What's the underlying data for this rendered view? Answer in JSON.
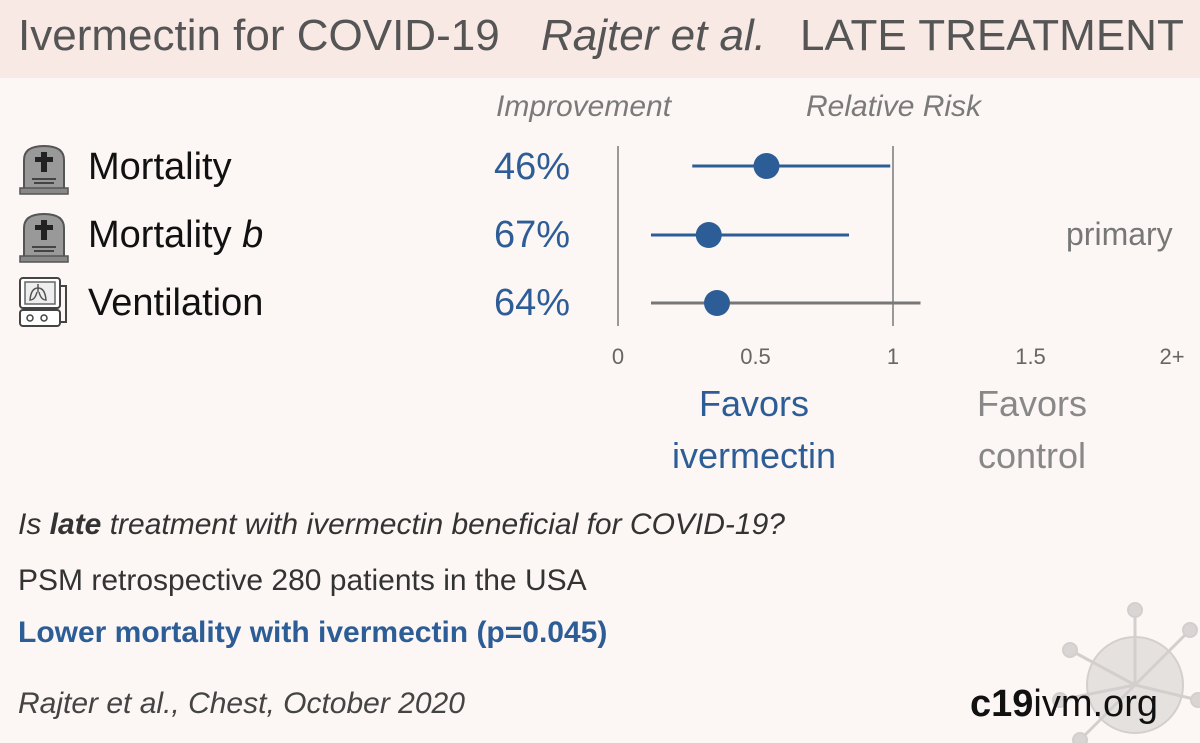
{
  "header": {
    "title_main": "Ivermectin for COVID-19",
    "title_authors": "Rajter et al.",
    "title_stage": "LATE TREATMENT"
  },
  "columns": {
    "improvement": "Improvement",
    "relative_risk": "Relative Risk"
  },
  "rows": [
    {
      "label": "Mortality",
      "label_suffix": "",
      "improvement": "46%",
      "icon": "tombstone-icon"
    },
    {
      "label": "Mortality ",
      "label_suffix": "b",
      "improvement": "67%",
      "icon": "tombstone-icon",
      "note": "primary"
    },
    {
      "label": "Ventilation",
      "label_suffix": "",
      "improvement": "64%",
      "icon": "ventilator-icon"
    }
  ],
  "chart_data": {
    "type": "forest",
    "x_axis": {
      "range": [
        0,
        2
      ],
      "reference_line": 1,
      "tick_values": [
        0,
        0.5,
        1,
        1.5,
        2
      ],
      "tick_labels": [
        "0",
        "0.5",
        "1",
        "1.5",
        "2+"
      ]
    },
    "series": [
      {
        "outcome": "Mortality",
        "rr": 0.54,
        "ci_low": 0.27,
        "ci_high": 0.99,
        "significant": true
      },
      {
        "outcome": "Mortality b",
        "rr": 0.33,
        "ci_low": 0.12,
        "ci_high": 0.84,
        "significant": true
      },
      {
        "outcome": "Ventilation",
        "rr": 0.36,
        "ci_low": 0.12,
        "ci_high": 1.1,
        "significant": false
      }
    ],
    "colors": {
      "significant": "#2d5d96",
      "not_significant": "#777777",
      "point": "#2d5d96",
      "axis": "#999999"
    }
  },
  "favors": {
    "ivermectin_line1": "Favors",
    "ivermectin_line2": "ivermectin",
    "control_line1": "Favors",
    "control_line2": "control"
  },
  "summary": {
    "question_pre": "Is ",
    "question_bold": "late",
    "question_post": " treatment with ivermectin beneficial for COVID-19?",
    "design": "PSM retrospective 280 patients in the USA",
    "conclusion": "Lower mortality with ivermectin (p=0.045)",
    "citation": "Rajter et al., Chest, October 2020"
  },
  "brand": {
    "bold": "c19",
    "rest": "ivm.org"
  }
}
